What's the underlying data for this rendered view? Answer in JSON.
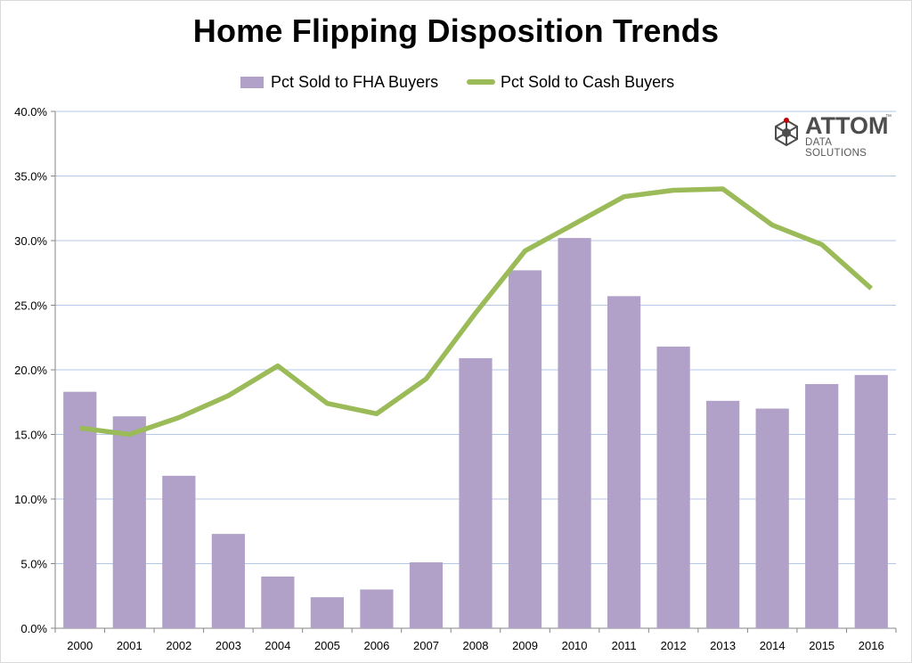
{
  "chart_data": {
    "type": "bar",
    "title": "Home Flipping Disposition Trends",
    "categories": [
      "2000",
      "2001",
      "2002",
      "2003",
      "2004",
      "2005",
      "2006",
      "2007",
      "2008",
      "2009",
      "2010",
      "2011",
      "2012",
      "2013",
      "2014",
      "2015",
      "2016"
    ],
    "ylim": [
      0,
      40
    ],
    "yticks": [
      "0.0%",
      "5.0%",
      "10.0%",
      "15.0%",
      "20.0%",
      "25.0%",
      "30.0%",
      "35.0%",
      "40.0%"
    ],
    "grid": true,
    "legend_placement": "top",
    "series": [
      {
        "name": "Pct Sold to FHA Buyers",
        "type": "bar",
        "color": "#b1a0c7",
        "values": [
          18.3,
          16.4,
          11.8,
          7.3,
          4.0,
          2.4,
          3.0,
          5.1,
          20.9,
          27.7,
          30.2,
          25.7,
          21.8,
          17.6,
          17.0,
          18.9,
          19.6
        ]
      },
      {
        "name": "Pct Sold to Cash Buyers",
        "type": "line",
        "color": "#9bbb59",
        "values": [
          15.5,
          15.0,
          16.3,
          18.0,
          20.3,
          17.4,
          16.6,
          19.3,
          24.4,
          29.2,
          31.3,
          33.4,
          33.9,
          34.0,
          31.2,
          29.7,
          26.3
        ]
      }
    ]
  },
  "logo": {
    "word": "ATTOM",
    "tm": "™",
    "sub": "DATA SOLUTIONS"
  }
}
